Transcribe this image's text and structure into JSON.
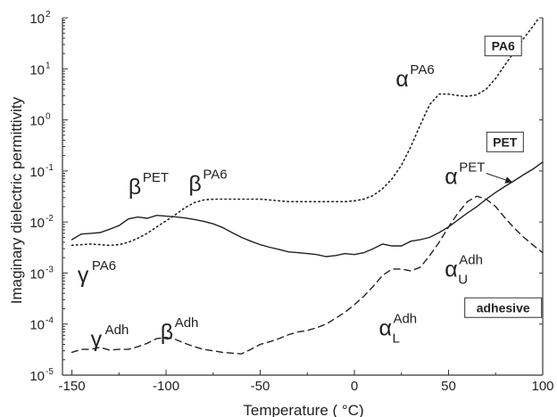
{
  "chart_data": {
    "type": "line",
    "xlabel": "Temperature ( °C)",
    "ylabel": "Imaginary dielectric permittivity",
    "xlim": [
      -155,
      100
    ],
    "ylim_log10": [
      -5,
      2
    ],
    "y_scale": "log",
    "grid": false,
    "x_ticks": [
      "-150",
      "-100",
      "-50",
      "0",
      "50",
      "100"
    ],
    "y_ticks": [
      {
        "base": "10",
        "exp": "2"
      },
      {
        "base": "10",
        "exp": "1"
      },
      {
        "base": "10",
        "exp": "0"
      },
      {
        "base": "10",
        "exp": "-1"
      },
      {
        "base": "10",
        "exp": "-2"
      },
      {
        "base": "10",
        "exp": "-3"
      },
      {
        "base": "10",
        "exp": "-4"
      },
      {
        "base": "10",
        "exp": "-5"
      }
    ],
    "series": [
      {
        "name": "PA6",
        "style": "dotted",
        "color": "#222222",
        "x": [
          -150,
          -145,
          -140,
          -135,
          -130,
          -125,
          -120,
          -115,
          -110,
          -105,
          -100,
          -95,
          -90,
          -85,
          -80,
          -75,
          -70,
          -65,
          -60,
          -55,
          -50,
          -45,
          -40,
          -35,
          -30,
          -25,
          -20,
          -15,
          -10,
          -5,
          0,
          5,
          10,
          15,
          20,
          25,
          30,
          35,
          40,
          45,
          50,
          55,
          60,
          65,
          70,
          75,
          80,
          85,
          90,
          95,
          98
        ],
        "y": [
          0.0035,
          0.0036,
          0.0037,
          0.0036,
          0.0035,
          0.0036,
          0.004,
          0.0048,
          0.006,
          0.008,
          0.0105,
          0.014,
          0.019,
          0.024,
          0.027,
          0.028,
          0.028,
          0.028,
          0.028,
          0.028,
          0.028,
          0.027,
          0.026,
          0.025,
          0.025,
          0.025,
          0.025,
          0.025,
          0.025,
          0.025,
          0.026,
          0.028,
          0.033,
          0.045,
          0.07,
          0.13,
          0.3,
          0.8,
          2.0,
          3.2,
          3.2,
          3.0,
          2.9,
          3.1,
          4.0,
          6.5,
          12,
          22,
          40,
          70,
          100
        ]
      },
      {
        "name": "PET",
        "style": "solid",
        "color": "#222222",
        "x": [
          -150,
          -145,
          -140,
          -135,
          -130,
          -125,
          -120,
          -115,
          -110,
          -105,
          -100,
          -95,
          -90,
          -85,
          -80,
          -75,
          -70,
          -65,
          -60,
          -55,
          -50,
          -45,
          -40,
          -35,
          -30,
          -25,
          -20,
          -15,
          -10,
          -5,
          0,
          5,
          10,
          15,
          20,
          25,
          30,
          35,
          40,
          45,
          50,
          55,
          60,
          65,
          70,
          75,
          80,
          85,
          90,
          95,
          100
        ],
        "y": [
          0.0045,
          0.0058,
          0.006,
          0.0062,
          0.0072,
          0.0085,
          0.0115,
          0.0125,
          0.0118,
          0.0135,
          0.013,
          0.0126,
          0.012,
          0.0112,
          0.0103,
          0.0092,
          0.0078,
          0.0062,
          0.005,
          0.0042,
          0.0036,
          0.0032,
          0.0029,
          0.0026,
          0.0025,
          0.0024,
          0.0023,
          0.0021,
          0.0022,
          0.0024,
          0.0023,
          0.0025,
          0.003,
          0.0037,
          0.0034,
          0.0034,
          0.0042,
          0.0045,
          0.005,
          0.0062,
          0.008,
          0.011,
          0.015,
          0.02,
          0.028,
          0.038,
          0.05,
          0.065,
          0.085,
          0.11,
          0.15
        ]
      },
      {
        "name": "adhesive",
        "style": "dashed",
        "color": "#222222",
        "x": [
          -150,
          -145,
          -140,
          -135,
          -130,
          -125,
          -120,
          -115,
          -110,
          -105,
          -100,
          -95,
          -90,
          -85,
          -80,
          -75,
          -70,
          -65,
          -60,
          -55,
          -50,
          -45,
          -40,
          -35,
          -30,
          -25,
          -20,
          -15,
          -10,
          -5,
          0,
          5,
          10,
          15,
          20,
          25,
          30,
          35,
          40,
          45,
          50,
          55,
          60,
          65,
          70,
          75,
          80,
          85,
          90,
          95,
          100
        ],
        "y": [
          2.8e-05,
          3.2e-05,
          3.2e-05,
          3.5e-05,
          3.1e-05,
          3.2e-05,
          3.2e-05,
          3.6e-05,
          4.2e-05,
          5.2e-05,
          5.5e-05,
          5e-05,
          4.2e-05,
          3.6e-05,
          3.2e-05,
          3e-05,
          2.8e-05,
          2.7e-05,
          2.6e-05,
          3.2e-05,
          4e-05,
          4.5e-05,
          5.2e-05,
          6.2e-05,
          7e-05,
          7.5e-05,
          8.5e-05,
          0.0001,
          0.00013,
          0.00017,
          0.00024,
          0.00035,
          0.00055,
          0.0009,
          0.0012,
          0.0012,
          0.0011,
          0.0013,
          0.0022,
          0.004,
          0.008,
          0.015,
          0.025,
          0.032,
          0.028,
          0.02,
          0.012,
          0.0075,
          0.005,
          0.0035,
          0.0025
        ]
      }
    ],
    "annotations": [
      {
        "greek": "γ",
        "sup": "PA6",
        "sub": "",
        "x": -147,
        "y": 0.00065
      },
      {
        "greek": "β",
        "sup": "PET",
        "sub": "",
        "x": -120,
        "y": 0.035
      },
      {
        "greek": "β",
        "sup": "PA6",
        "sub": "",
        "x": -88,
        "y": 0.04
      },
      {
        "greek": "α",
        "sup": "PA6",
        "sub": "",
        "x": 22,
        "y": 4.5
      },
      {
        "greek": "γ",
        "sup": "Adh",
        "sub": "",
        "x": -140,
        "y": 3.6e-05
      },
      {
        "greek": "β",
        "sup": "Adh",
        "sub": "",
        "x": -103,
        "y": 5e-05
      },
      {
        "greek": "α",
        "sup": "PET",
        "sub": "",
        "x": 48,
        "y": 0.055
      },
      {
        "greek": "α",
        "sup": "Adh",
        "sub": "U",
        "x": 48,
        "y": 0.00085
      },
      {
        "greek": "α",
        "sup": "Adh",
        "sub": "L",
        "x": 13,
        "y": 6e-05
      }
    ],
    "boxed_labels": [
      {
        "text": "PA6",
        "x": 79,
        "y": 28
      },
      {
        "text": "PET",
        "x": 80,
        "y": 0.37
      },
      {
        "text": "adhesive",
        "x": 79,
        "y": 0.00021
      }
    ]
  }
}
